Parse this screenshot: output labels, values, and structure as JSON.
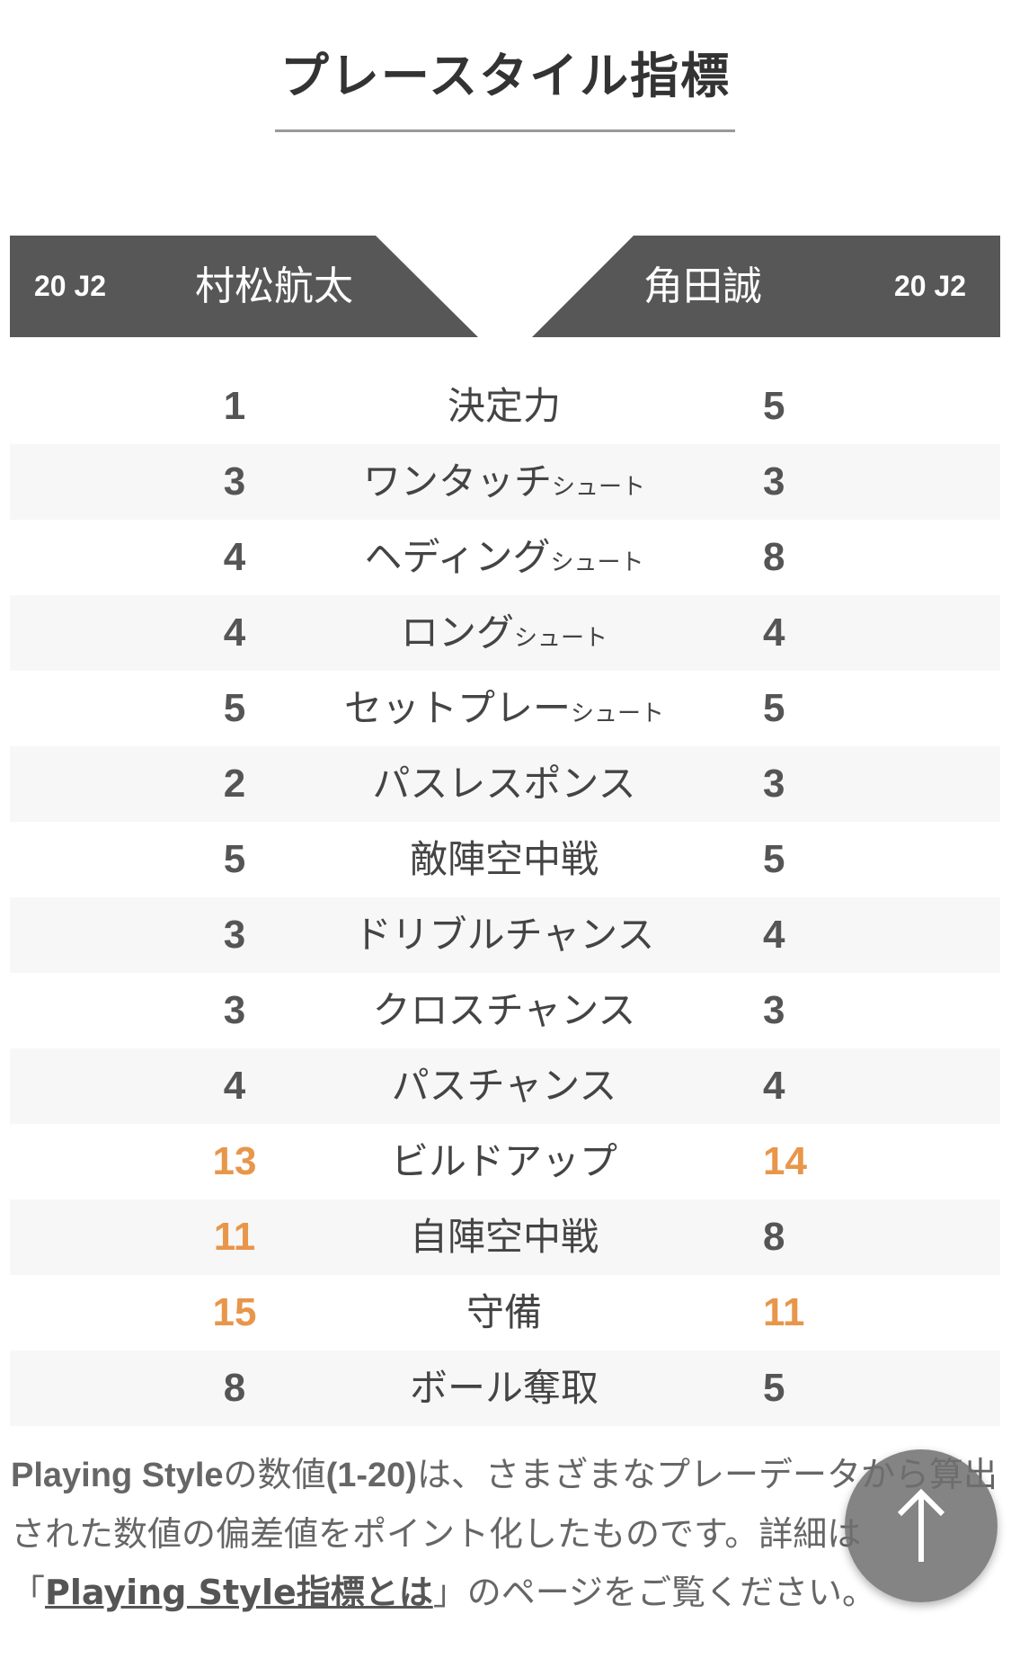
{
  "title": "プレースタイル指標",
  "header": {
    "left": {
      "season": "20 J2",
      "name": "村松航太"
    },
    "right": {
      "season": "20 J2",
      "name": "角田誠"
    },
    "bg_color": "#575757"
  },
  "highlight_color": "#e8964a",
  "rows": [
    {
      "label": "決定力",
      "suffix": "",
      "left": "1",
      "right": "5",
      "left_hi": false,
      "right_hi": false
    },
    {
      "label": "ワンタッチ",
      "suffix": "シュート",
      "left": "3",
      "right": "3",
      "left_hi": false,
      "right_hi": false
    },
    {
      "label": "ヘディング",
      "suffix": "シュート",
      "left": "4",
      "right": "8",
      "left_hi": false,
      "right_hi": false
    },
    {
      "label": "ロング",
      "suffix": "シュート",
      "left": "4",
      "right": "4",
      "left_hi": false,
      "right_hi": false
    },
    {
      "label": "セットプレー",
      "suffix": "シュート",
      "left": "5",
      "right": "5",
      "left_hi": false,
      "right_hi": false
    },
    {
      "label": "パスレスポンス",
      "suffix": "",
      "left": "2",
      "right": "3",
      "left_hi": false,
      "right_hi": false
    },
    {
      "label": "敵陣空中戦",
      "suffix": "",
      "left": "5",
      "right": "5",
      "left_hi": false,
      "right_hi": false
    },
    {
      "label": "ドリブルチャンス",
      "suffix": "",
      "left": "3",
      "right": "4",
      "left_hi": false,
      "right_hi": false
    },
    {
      "label": "クロスチャンス",
      "suffix": "",
      "left": "3",
      "right": "3",
      "left_hi": false,
      "right_hi": false
    },
    {
      "label": "パスチャンス",
      "suffix": "",
      "left": "4",
      "right": "4",
      "left_hi": false,
      "right_hi": false
    },
    {
      "label": "ビルドアップ",
      "suffix": "",
      "left": "13",
      "right": "14",
      "left_hi": true,
      "right_hi": true
    },
    {
      "label": "自陣空中戦",
      "suffix": "",
      "left": "11",
      "right": "8",
      "left_hi": true,
      "right_hi": false
    },
    {
      "label": "守備",
      "suffix": "",
      "left": "15",
      "right": "11",
      "left_hi": true,
      "right_hi": true
    },
    {
      "label": "ボール奪取",
      "suffix": "",
      "left": "8",
      "right": "5",
      "left_hi": false,
      "right_hi": false
    }
  ],
  "footer": {
    "bold1": "Playing Style",
    "text1": "の数値",
    "bold2": "(1-20)",
    "text2": "は、さまざまなプレーデータから算出された数値の偏差値をポイント化したものです。詳細は「",
    "link": "Playing Style指標とは",
    "text3": "」のページをご覧ください。"
  },
  "scroll_top_icon": "arrow-up-icon"
}
